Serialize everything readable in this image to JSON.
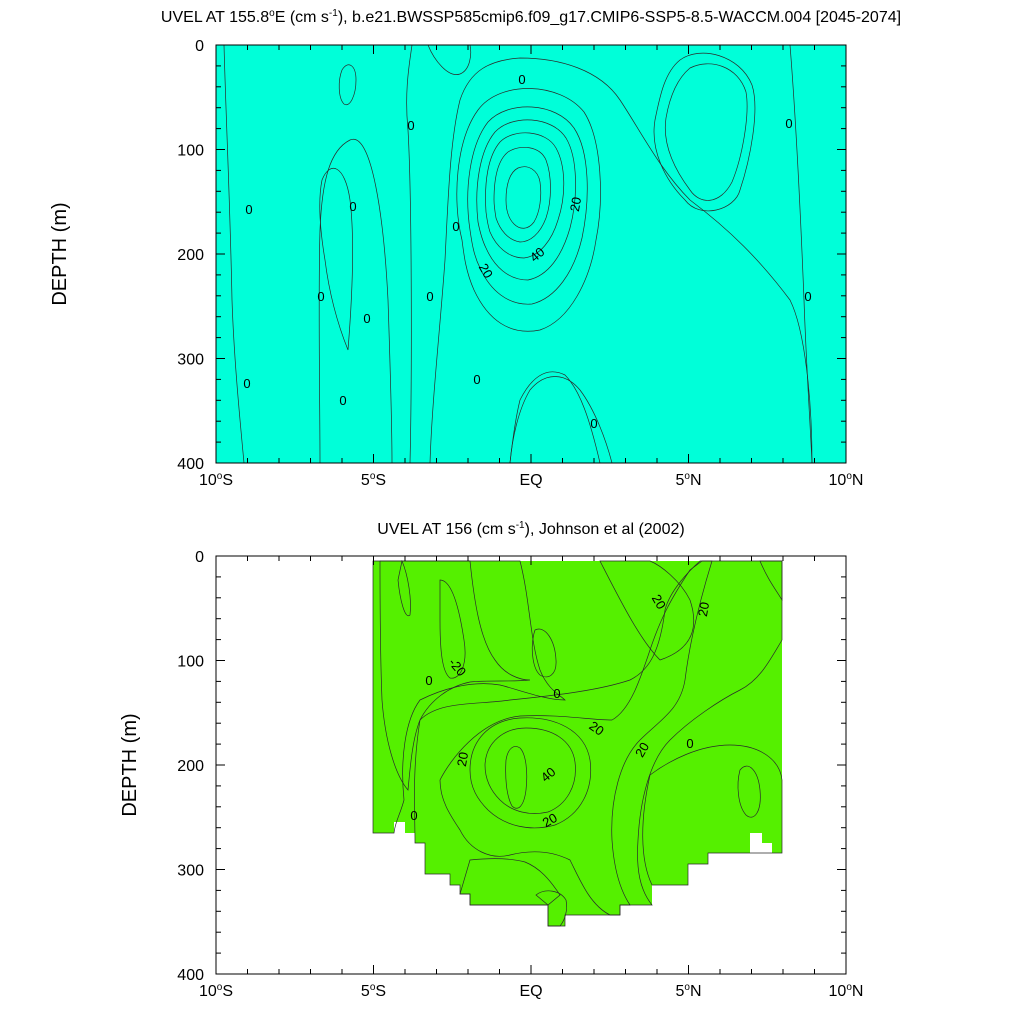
{
  "chart_data": [
    {
      "type": "contour",
      "title_pre": "UVEL AT 155.8",
      "title_mid": "E (cm s",
      "title_sup": "-1",
      "title_post": "), b.e21.BWSSP585cmip6.f09_g17.CMIP6-SSP5-8.5-WACCM.004 [2045-2074]",
      "ylabel": "DEPTH (m)",
      "xlim": [
        -10,
        10
      ],
      "ylim": [
        0,
        400
      ],
      "xticks": [
        -10,
        -5,
        0,
        5,
        10
      ],
      "yticks": [
        0,
        100,
        200,
        300,
        400
      ],
      "contour_interval_cm_s": 10,
      "core": {
        "lat": -0.3,
        "depth_m": 155,
        "max_cm_s": 55
      },
      "contour_labels": [
        "0",
        "0",
        "0",
        "0",
        "0",
        "0",
        "0",
        "0",
        "0",
        "0",
        "0",
        "0",
        "0",
        "0",
        "20",
        "20",
        "40"
      ]
    },
    {
      "type": "contour",
      "title_pre": "UVEL AT 156 (cm s",
      "title_sup": "-1",
      "title_post": "), Johnson et al (2002)",
      "ylabel": "DEPTH (m)",
      "xlim": [
        -10,
        10
      ],
      "ylim": [
        0,
        400
      ],
      "xticks": [
        -10,
        -5,
        0,
        5,
        10
      ],
      "yticks": [
        0,
        100,
        200,
        300,
        400
      ],
      "data_lat_range": [
        -5,
        8
      ],
      "contour_interval_cm_s": 10,
      "core": {
        "lat": -0.3,
        "depth_m": 200,
        "max_cm_s": 55
      },
      "contour_labels": [
        "20",
        "20",
        "-20",
        "0",
        "0",
        "20",
        "20",
        "20",
        "40",
        "20",
        "0",
        "0"
      ]
    }
  ],
  "axis": {
    "xtick_labels": [
      "10",
      "5",
      "EQ",
      "5",
      "10"
    ],
    "xtick_suffix": [
      "S",
      "S",
      "",
      "N",
      "N"
    ],
    "degree_mark": "o",
    "ytick_labels": [
      "0",
      "100",
      "200",
      "300",
      "400"
    ]
  },
  "colors": {
    "neg30": "#1eb4ff",
    "neg20": "#00f0ff",
    "neg10": "#00ffd9",
    "zero": "#00f000",
    "p10": "#55f000",
    "p20": "#c7f000",
    "p30": "#ffff00",
    "p40": "#ffd21e",
    "p50": "#ffb432",
    "p60": "#ff9628"
  }
}
